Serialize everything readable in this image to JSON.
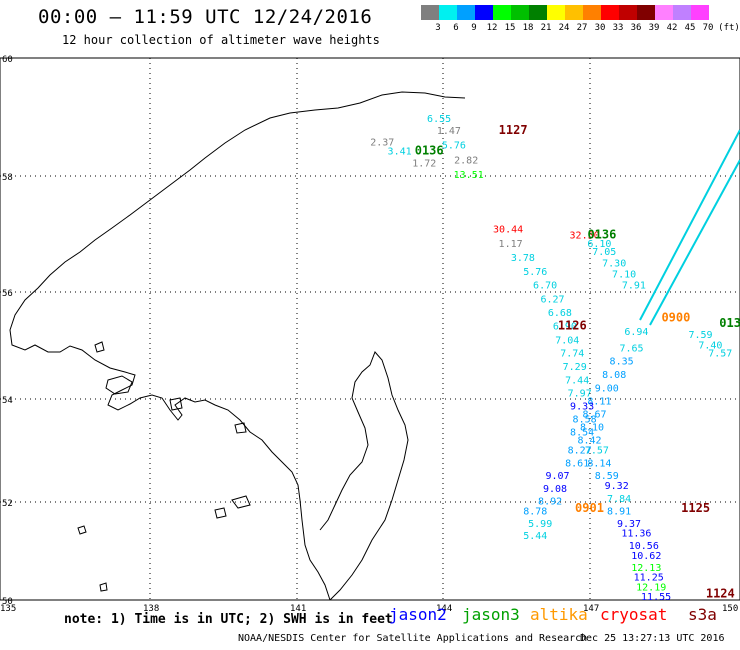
{
  "header": {
    "title": "00:00 – 11:59 UTC 12/24/2016",
    "subtitle": "12 hour collection of altimeter wave heights"
  },
  "legend": {
    "bins": [
      {
        "label": "3",
        "color": "#7f7f7f"
      },
      {
        "label": "6",
        "color": "#00f0f0"
      },
      {
        "label": "9",
        "color": "#00a0ff"
      },
      {
        "label": "12",
        "color": "#0000ff"
      },
      {
        "label": "15",
        "color": "#00ff00"
      },
      {
        "label": "18",
        "color": "#00c000"
      },
      {
        "label": "21",
        "color": "#008000"
      },
      {
        "label": "24",
        "color": "#ffff00"
      },
      {
        "label": "27",
        "color": "#ffc000"
      },
      {
        "label": "30",
        "color": "#ff8000"
      },
      {
        "label": "33",
        "color": "#ff0000"
      },
      {
        "label": "36",
        "color": "#c00000"
      },
      {
        "label": "39",
        "color": "#800000"
      },
      {
        "label": "42",
        "color": "#ff80ff"
      },
      {
        "label": "45",
        "color": "#c080ff"
      },
      {
        "label": "70",
        "color": "#ff40ff"
      }
    ],
    "unit": "(ft)"
  },
  "map": {
    "lat_labels": [
      "50",
      "52",
      "54",
      "56",
      "58",
      "60"
    ],
    "lon_labels": [
      "135",
      "138",
      "141",
      "144",
      "147",
      "150"
    ],
    "lat_range": [
      50,
      60
    ],
    "lon_range": [
      135,
      150
    ],
    "grid": true,
    "projection": "mercator"
  },
  "passes": [
    {
      "label": "0136",
      "lon": 143.7,
      "lat": 58.4,
      "color": "#008000"
    },
    {
      "label": "1127",
      "lon": 145.4,
      "lat": 58.75,
      "color": "#800000"
    },
    {
      "label": "0136",
      "lon": 147.2,
      "lat": 56.95,
      "color": "#008000"
    },
    {
      "label": "1126",
      "lon": 146.6,
      "lat": 55.3,
      "color": "#800000"
    },
    {
      "label": "0900",
      "lon": 148.7,
      "lat": 55.45,
      "color": "#ff8000"
    },
    {
      "label": "013",
      "lon": 149.8,
      "lat": 55.35,
      "color": "#008000"
    },
    {
      "label": "0901",
      "lon": 146.95,
      "lat": 51.8,
      "color": "#ff8000"
    },
    {
      "label": "1125",
      "lon": 149.1,
      "lat": 51.8,
      "color": "#800000"
    },
    {
      "label": "1124",
      "lon": 149.6,
      "lat": 50.05,
      "color": "#800000"
    }
  ],
  "wave_heights": [
    {
      "v": "6.55",
      "lon": 143.9,
      "lat": 58.95,
      "color": "#00d0e0"
    },
    {
      "v": "1.47",
      "lon": 144.1,
      "lat": 58.75,
      "color": "#7f7f7f"
    },
    {
      "v": "2.37",
      "lon": 142.75,
      "lat": 58.55,
      "color": "#7f7f7f"
    },
    {
      "v": "3.41",
      "lon": 143.1,
      "lat": 58.4,
      "color": "#00d0e0"
    },
    {
      "v": "5.76",
      "lon": 144.2,
      "lat": 58.5,
      "color": "#00d0e0"
    },
    {
      "v": "1.72",
      "lon": 143.6,
      "lat": 58.2,
      "color": "#7f7f7f"
    },
    {
      "v": "2.82",
      "lon": 144.45,
      "lat": 58.25,
      "color": "#7f7f7f"
    },
    {
      "v": "13.51",
      "lon": 144.5,
      "lat": 58.0,
      "color": "#00ff00"
    },
    {
      "v": "30.44",
      "lon": 145.3,
      "lat": 57.05,
      "color": "#ff0000"
    },
    {
      "v": "32.50",
      "lon": 146.85,
      "lat": 56.95,
      "color": "#ff0000"
    },
    {
      "v": "1.17",
      "lon": 145.35,
      "lat": 56.8,
      "color": "#7f7f7f"
    },
    {
      "v": "6.10",
      "lon": 147.15,
      "lat": 56.8,
      "color": "#00d0e0"
    },
    {
      "v": "3.78",
      "lon": 145.6,
      "lat": 56.55,
      "color": "#00d0e0"
    },
    {
      "v": "7.05",
      "lon": 147.25,
      "lat": 56.65,
      "color": "#00d0e0"
    },
    {
      "v": "5.76",
      "lon": 145.85,
      "lat": 56.3,
      "color": "#00d0e0"
    },
    {
      "v": "7.30",
      "lon": 147.45,
      "lat": 56.45,
      "color": "#00d0e0"
    },
    {
      "v": "6.70",
      "lon": 146.05,
      "lat": 56.05,
      "color": "#00d0e0"
    },
    {
      "v": "7.10",
      "lon": 147.65,
      "lat": 56.25,
      "color": "#00d0e0"
    },
    {
      "v": "7.91",
      "lon": 147.85,
      "lat": 56.05,
      "color": "#00d0e0"
    },
    {
      "v": "6.27",
      "lon": 146.2,
      "lat": 55.8,
      "color": "#00d0e0"
    },
    {
      "v": "6.68",
      "lon": 146.35,
      "lat": 55.55,
      "color": "#00d0e0"
    },
    {
      "v": "6.90",
      "lon": 146.45,
      "lat": 55.3,
      "color": "#00d0e0"
    },
    {
      "v": "7.04",
      "lon": 146.5,
      "lat": 55.05,
      "color": "#00d0e0"
    },
    {
      "v": "6.94",
      "lon": 147.9,
      "lat": 55.2,
      "color": "#00d0e0"
    },
    {
      "v": "7.59",
      "lon": 149.2,
      "lat": 55.15,
      "color": "#00d0e0"
    },
    {
      "v": "7.74",
      "lon": 146.6,
      "lat": 54.8,
      "color": "#00d0e0"
    },
    {
      "v": "7.65",
      "lon": 147.8,
      "lat": 54.9,
      "color": "#00d0e0"
    },
    {
      "v": "7.40",
      "lon": 149.4,
      "lat": 54.95,
      "color": "#00d0e0"
    },
    {
      "v": "7.29",
      "lon": 146.65,
      "lat": 54.55,
      "color": "#00d0e0"
    },
    {
      "v": "8.35",
      "lon": 147.6,
      "lat": 54.65,
      "color": "#00a0ff"
    },
    {
      "v": "7.57",
      "lon": 149.6,
      "lat": 54.8,
      "color": "#00d0e0"
    },
    {
      "v": "7.44",
      "lon": 146.7,
      "lat": 54.3,
      "color": "#00d0e0"
    },
    {
      "v": "8.08",
      "lon": 147.45,
      "lat": 54.4,
      "color": "#00a0ff"
    },
    {
      "v": "7.97",
      "lon": 146.75,
      "lat": 54.05,
      "color": "#00d0e0"
    },
    {
      "v": "9.00",
      "lon": 147.3,
      "lat": 54.15,
      "color": "#00a0ff"
    },
    {
      "v": "8.11",
      "lon": 147.15,
      "lat": 53.9,
      "color": "#00a0ff"
    },
    {
      "v": "9.33",
      "lon": 146.8,
      "lat": 53.8,
      "color": "#0000ff"
    },
    {
      "v": "8.67",
      "lon": 147.05,
      "lat": 53.65,
      "color": "#00a0ff"
    },
    {
      "v": "8.58",
      "lon": 146.85,
      "lat": 53.55,
      "color": "#00a0ff"
    },
    {
      "v": "8.10",
      "lon": 147.0,
      "lat": 53.4,
      "color": "#00a0ff"
    },
    {
      "v": "8.54",
      "lon": 146.8,
      "lat": 53.3,
      "color": "#00a0ff"
    },
    {
      "v": "8.42",
      "lon": 146.95,
      "lat": 53.15,
      "color": "#00a0ff"
    },
    {
      "v": "7.57",
      "lon": 147.1,
      "lat": 52.95,
      "color": "#00d0e0"
    },
    {
      "v": "8.27",
      "lon": 146.75,
      "lat": 52.95,
      "color": "#00a0ff"
    },
    {
      "v": "8.14",
      "lon": 147.15,
      "lat": 52.7,
      "color": "#00a0ff"
    },
    {
      "v": "8.61",
      "lon": 146.7,
      "lat": 52.7,
      "color": "#00a0ff"
    },
    {
      "v": "8.59",
      "lon": 147.3,
      "lat": 52.45,
      "color": "#00a0ff"
    },
    {
      "v": "9.07",
      "lon": 146.3,
      "lat": 52.45,
      "color": "#0000ff"
    },
    {
      "v": "9.32",
      "lon": 147.5,
      "lat": 52.25,
      "color": "#0000ff"
    },
    {
      "v": "9.08",
      "lon": 146.25,
      "lat": 52.2,
      "color": "#0000ff"
    },
    {
      "v": "7.84",
      "lon": 147.55,
      "lat": 52.0,
      "color": "#00d0e0"
    },
    {
      "v": "8.92",
      "lon": 146.15,
      "lat": 51.95,
      "color": "#00a0ff"
    },
    {
      "v": "8.91",
      "lon": 147.55,
      "lat": 51.75,
      "color": "#00a0ff"
    },
    {
      "v": "8.78",
      "lon": 145.85,
      "lat": 51.75,
      "color": "#00a0ff"
    },
    {
      "v": "9.37",
      "lon": 147.75,
      "lat": 51.5,
      "color": "#0000ff"
    },
    {
      "v": "5.99",
      "lon": 145.95,
      "lat": 51.5,
      "color": "#00d0e0"
    },
    {
      "v": "11.36",
      "lon": 147.9,
      "lat": 51.3,
      "color": "#0000ff"
    },
    {
      "v": "5.44",
      "lon": 145.85,
      "lat": 51.25,
      "color": "#00d0e0"
    },
    {
      "v": "10.56",
      "lon": 148.05,
      "lat": 51.05,
      "color": "#0000ff"
    },
    {
      "v": "10.62",
      "lon": 148.1,
      "lat": 50.85,
      "color": "#0000ff"
    },
    {
      "v": "12.13",
      "lon": 148.1,
      "lat": 50.6,
      "color": "#00ff00"
    },
    {
      "v": "11.25",
      "lon": 148.15,
      "lat": 50.4,
      "color": "#0000ff"
    },
    {
      "v": "12.19",
      "lon": 148.2,
      "lat": 50.2,
      "color": "#00ff00"
    },
    {
      "v": "11.55",
      "lon": 148.3,
      "lat": 50.0,
      "color": "#0000ff"
    }
  ],
  "footer": {
    "note": "note: 1) Time is in UTC; 2) SWH is in feet",
    "satellites": [
      {
        "name": "jason2",
        "color": "#0000ff"
      },
      {
        "name": "jason3",
        "color": "#00a000"
      },
      {
        "name": "altika",
        "color": "#ff9900"
      },
      {
        "name": "cryosat",
        "color": "#ff0000"
      },
      {
        "name": "s3a",
        "color": "#800000"
      }
    ],
    "credit": "NOAA/NESDIS Center for Satellite Applications and Research",
    "timestamp": "Dec 25 13:27:13 UTC 2016"
  }
}
